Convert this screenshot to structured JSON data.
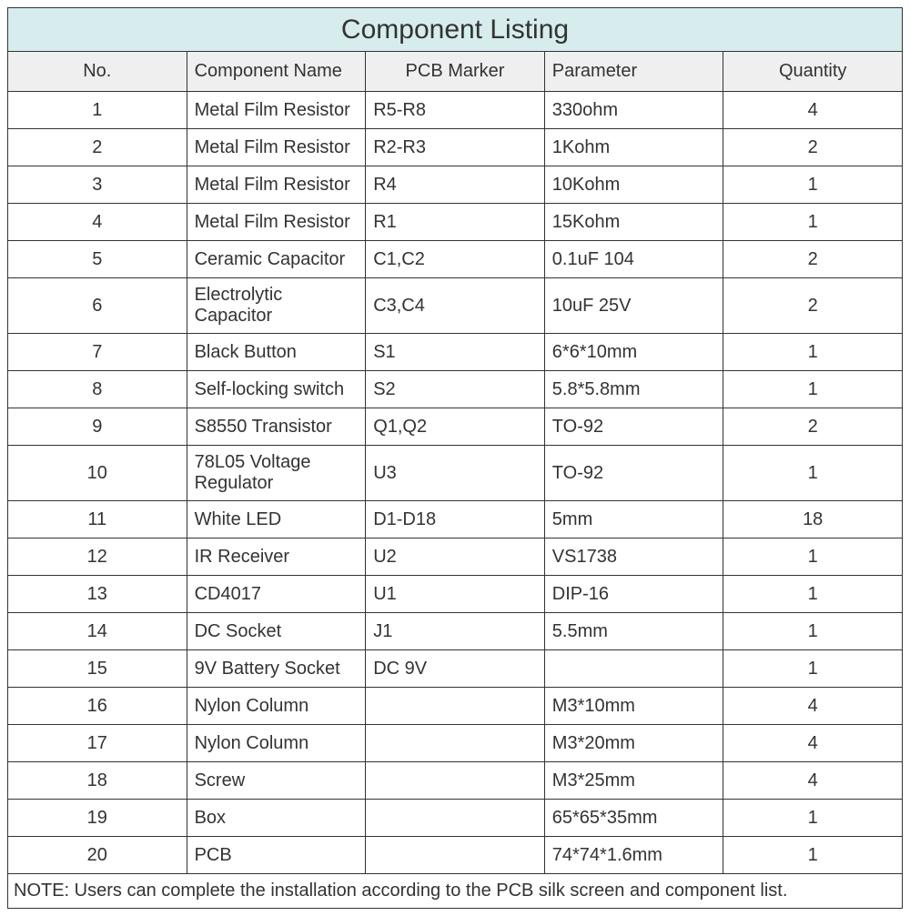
{
  "title": "Component Listing",
  "columns": {
    "no": "No.",
    "name": "Component Name",
    "marker": "PCB Marker",
    "param": "Parameter",
    "qty": "Quantity"
  },
  "rows": [
    {
      "no": "1",
      "name": "Metal Film Resistor",
      "marker": "R5-R8",
      "param": "330ohm",
      "qty": "4"
    },
    {
      "no": "2",
      "name": "Metal Film Resistor",
      "marker": "R2-R3",
      "param": "1Kohm",
      "qty": "2"
    },
    {
      "no": "3",
      "name": "Metal Film Resistor",
      "marker": "R4",
      "param": "10Kohm",
      "qty": "1"
    },
    {
      "no": "4",
      "name": "Metal Film Resistor",
      "marker": "R1",
      "param": "15Kohm",
      "qty": "1"
    },
    {
      "no": "5",
      "name": "Ceramic Capacitor",
      "marker": "C1,C2",
      "param": "0.1uF 104",
      "qty": "2"
    },
    {
      "no": "6",
      "name": "Electrolytic Capacitor",
      "marker": "C3,C4",
      "param": "10uF 25V",
      "qty": "2"
    },
    {
      "no": "7",
      "name": "Black Button",
      "marker": "S1",
      "param": "6*6*10mm",
      "qty": "1"
    },
    {
      "no": "8",
      "name": "Self-locking switch",
      "marker": "S2",
      "param": "5.8*5.8mm",
      "qty": "1"
    },
    {
      "no": "9",
      "name": "S8550 Transistor",
      "marker": "Q1,Q2",
      "param": "TO-92",
      "qty": "2"
    },
    {
      "no": "10",
      "name": "78L05 Voltage Regulator",
      "marker": "U3",
      "param": "TO-92",
      "qty": "1"
    },
    {
      "no": "11",
      "name": "White LED",
      "marker": "D1-D18",
      "param": "5mm",
      "qty": "18"
    },
    {
      "no": "12",
      "name": "IR Receiver",
      "marker": "U2",
      "param": "VS1738",
      "qty": "1"
    },
    {
      "no": "13",
      "name": "CD4017",
      "marker": "U1",
      "param": "DIP-16",
      "qty": "1"
    },
    {
      "no": "14",
      "name": "DC Socket",
      "marker": "J1",
      "param": "5.5mm",
      "qty": "1"
    },
    {
      "no": "15",
      "name": "9V Battery Socket",
      "marker": "DC 9V",
      "param": "",
      "qty": "1"
    },
    {
      "no": "16",
      "name": "Nylon Column",
      "marker": "",
      "param": "M3*10mm",
      "qty": "4"
    },
    {
      "no": "17",
      "name": "Nylon Column",
      "marker": "",
      "param": "M3*20mm",
      "qty": "4"
    },
    {
      "no": "18",
      "name": "Screw",
      "marker": "",
      "param": "M3*25mm",
      "qty": "4"
    },
    {
      "no": "19",
      "name": "Box",
      "marker": "",
      "param": "65*65*35mm",
      "qty": "1"
    },
    {
      "no": "20",
      "name": "PCB",
      "marker": "",
      "param": "74*74*1.6mm",
      "qty": "1"
    }
  ],
  "note": "NOTE: Users can complete the installation according to the PCB silk screen and component list.",
  "styling": {
    "title_bg": "#d7ecec",
    "header_bg": "#efefef",
    "border_color": "#333333",
    "text_color": "#333333",
    "title_fontsize": 30,
    "cell_fontsize": 20,
    "col_widths": {
      "no": 56,
      "name": 270,
      "marker": 316,
      "param": 174,
      "qty": 98
    }
  }
}
